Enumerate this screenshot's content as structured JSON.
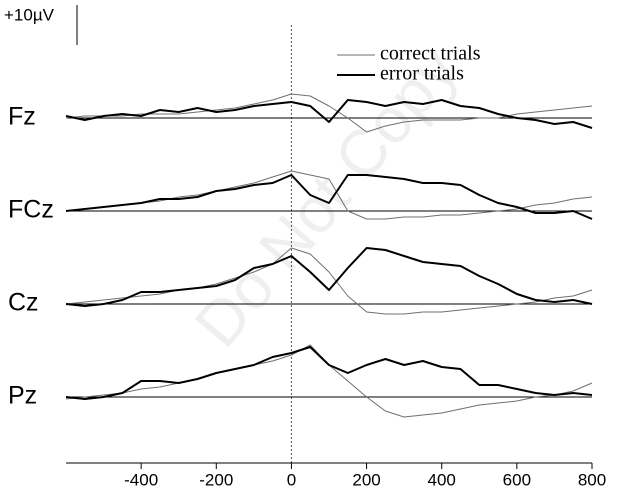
{
  "chart_data": {
    "type": "line",
    "watermark": "Do Not Copy",
    "scale_bar": {
      "value": 10,
      "label": "+10µV"
    },
    "legend": "upper right",
    "vline": 0,
    "x": [
      -600,
      -550,
      -500,
      -450,
      -400,
      -350,
      -300,
      -250,
      -200,
      -150,
      -100,
      -50,
      0,
      50,
      100,
      150,
      200,
      250,
      300,
      350,
      400,
      450,
      500,
      550,
      600,
      650,
      700,
      750,
      800
    ],
    "xlim": [
      -600,
      800
    ],
    "xticks": [
      -400,
      -200,
      0,
      200,
      400,
      600,
      800
    ],
    "series": [
      {
        "name": "correct trials",
        "color": "#6f6f6f",
        "width": 1
      },
      {
        "name": "error trials",
        "color": "#000000",
        "width": 2
      }
    ],
    "panels": [
      {
        "label": "Fz",
        "ylim": [
          -6,
          17
        ],
        "yticks": [
          0
        ],
        "values": [
          [
            0,
            0.5,
            0.5,
            0.5,
            1,
            1,
            1,
            1.5,
            2,
            2.5,
            3.5,
            4.5,
            6,
            5.5,
            3,
            0,
            -3.5,
            -2,
            -1,
            -0.5,
            -0.5,
            -0.5,
            0,
            0,
            1,
            1.5,
            2,
            2.5,
            3
          ],
          [
            0.5,
            -0.5,
            0.5,
            1,
            0.5,
            2,
            1.5,
            2.5,
            1.5,
            2,
            3,
            3.5,
            4,
            3,
            -1,
            4.5,
            4,
            3,
            4,
            3.5,
            4.5,
            3,
            2.5,
            1,
            0,
            -0.5,
            -1.5,
            -1,
            -2.5
          ]
        ]
      },
      {
        "label": "FCz",
        "ylim": [
          -6,
          17
        ],
        "yticks": [
          0
        ],
        "values": [
          [
            0,
            0.5,
            1,
            1.5,
            2,
            2.5,
            3.5,
            4,
            5,
            6,
            7,
            8.5,
            10,
            9,
            8,
            0,
            -2,
            -2,
            -1.5,
            -1.5,
            -1,
            -1,
            -0.5,
            0,
            0.5,
            1.5,
            2,
            3,
            3.5
          ],
          [
            0,
            0.5,
            1,
            1.5,
            2,
            3,
            3,
            3.5,
            5,
            5.5,
            6.5,
            7,
            9,
            4,
            2,
            9,
            9,
            8.5,
            8,
            7,
            7,
            6.5,
            4,
            2,
            1,
            -0.5,
            -0.5,
            0,
            -2
          ]
        ]
      },
      {
        "label": "Cz",
        "ylim": [
          -6,
          17
        ],
        "yticks": [
          0
        ],
        "values": [
          [
            0,
            0.5,
            1,
            1.5,
            2,
            2.5,
            3.5,
            4,
            5,
            6.5,
            8,
            10,
            14,
            12.5,
            8,
            2,
            -2,
            -2.5,
            -2.5,
            -2,
            -2,
            -1.5,
            -1,
            -0.5,
            0,
            0.5,
            1.5,
            2,
            3.5
          ],
          [
            0,
            -0.5,
            0,
            1,
            3,
            3,
            3.5,
            4,
            4.5,
            6,
            9,
            10,
            12,
            8,
            3.5,
            9,
            14,
            13.5,
            12,
            10.5,
            10,
            9.5,
            7,
            5,
            2.5,
            1,
            0.5,
            1,
            0
          ]
        ]
      },
      {
        "label": "Pz",
        "ylim": [
          -6,
          17
        ],
        "yticks": [
          0
        ],
        "values": [
          [
            -0.5,
            0,
            0.5,
            1,
            2,
            2.5,
            3.5,
            4.5,
            6,
            7,
            8,
            9,
            10.5,
            13,
            8,
            4,
            0,
            -3.5,
            -5,
            -4.5,
            -4,
            -3,
            -2,
            -1.5,
            -1,
            0,
            0.5,
            1.5,
            3.5
          ],
          [
            0,
            -0.5,
            0,
            1,
            4,
            4,
            3.5,
            4.5,
            6,
            7,
            8,
            10,
            11,
            12.5,
            8,
            6,
            8,
            9.5,
            8,
            9,
            7.5,
            7,
            3,
            3,
            2,
            1,
            0.5,
            1,
            0.5
          ]
        ]
      }
    ]
  }
}
